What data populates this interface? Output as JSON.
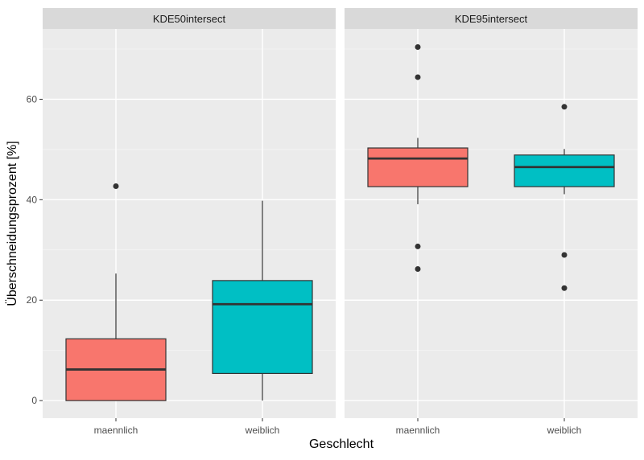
{
  "chart_data": {
    "type": "boxplot",
    "xlabel": "Geschlecht",
    "ylabel": "Überschneidungsprozent [%]",
    "ylim": [
      -3.5,
      74
    ],
    "yticks": [
      0,
      20,
      40,
      60
    ],
    "categories": [
      "maennlich",
      "weiblich"
    ],
    "fill_colors": {
      "maennlich": "#F8766D",
      "weiblich": "#00BFC4"
    },
    "panels": [
      {
        "title": "KDE50intersect",
        "boxes": [
          {
            "category": "maennlich",
            "q1": 0,
            "median": 6.2,
            "q3": 12.3,
            "whisker_low": 0,
            "whisker_high": 25.3,
            "outliers": [
              42.7
            ]
          },
          {
            "category": "weiblich",
            "q1": 5.4,
            "median": 19.2,
            "q3": 23.9,
            "whisker_low": 0,
            "whisker_high": 39.8,
            "outliers": []
          }
        ]
      },
      {
        "title": "KDE95intersect",
        "boxes": [
          {
            "category": "maennlich",
            "q1": 42.6,
            "median": 48.2,
            "q3": 50.3,
            "whisker_low": 39.1,
            "whisker_high": 52.3,
            "outliers": [
              70.4,
              64.4,
              30.7,
              26.2
            ]
          },
          {
            "category": "weiblich",
            "q1": 42.6,
            "median": 46.5,
            "q3": 48.9,
            "whisker_low": 41.1,
            "whisker_high": 50.1,
            "outliers": [
              58.5,
              29.0,
              22.4
            ]
          }
        ]
      }
    ]
  }
}
